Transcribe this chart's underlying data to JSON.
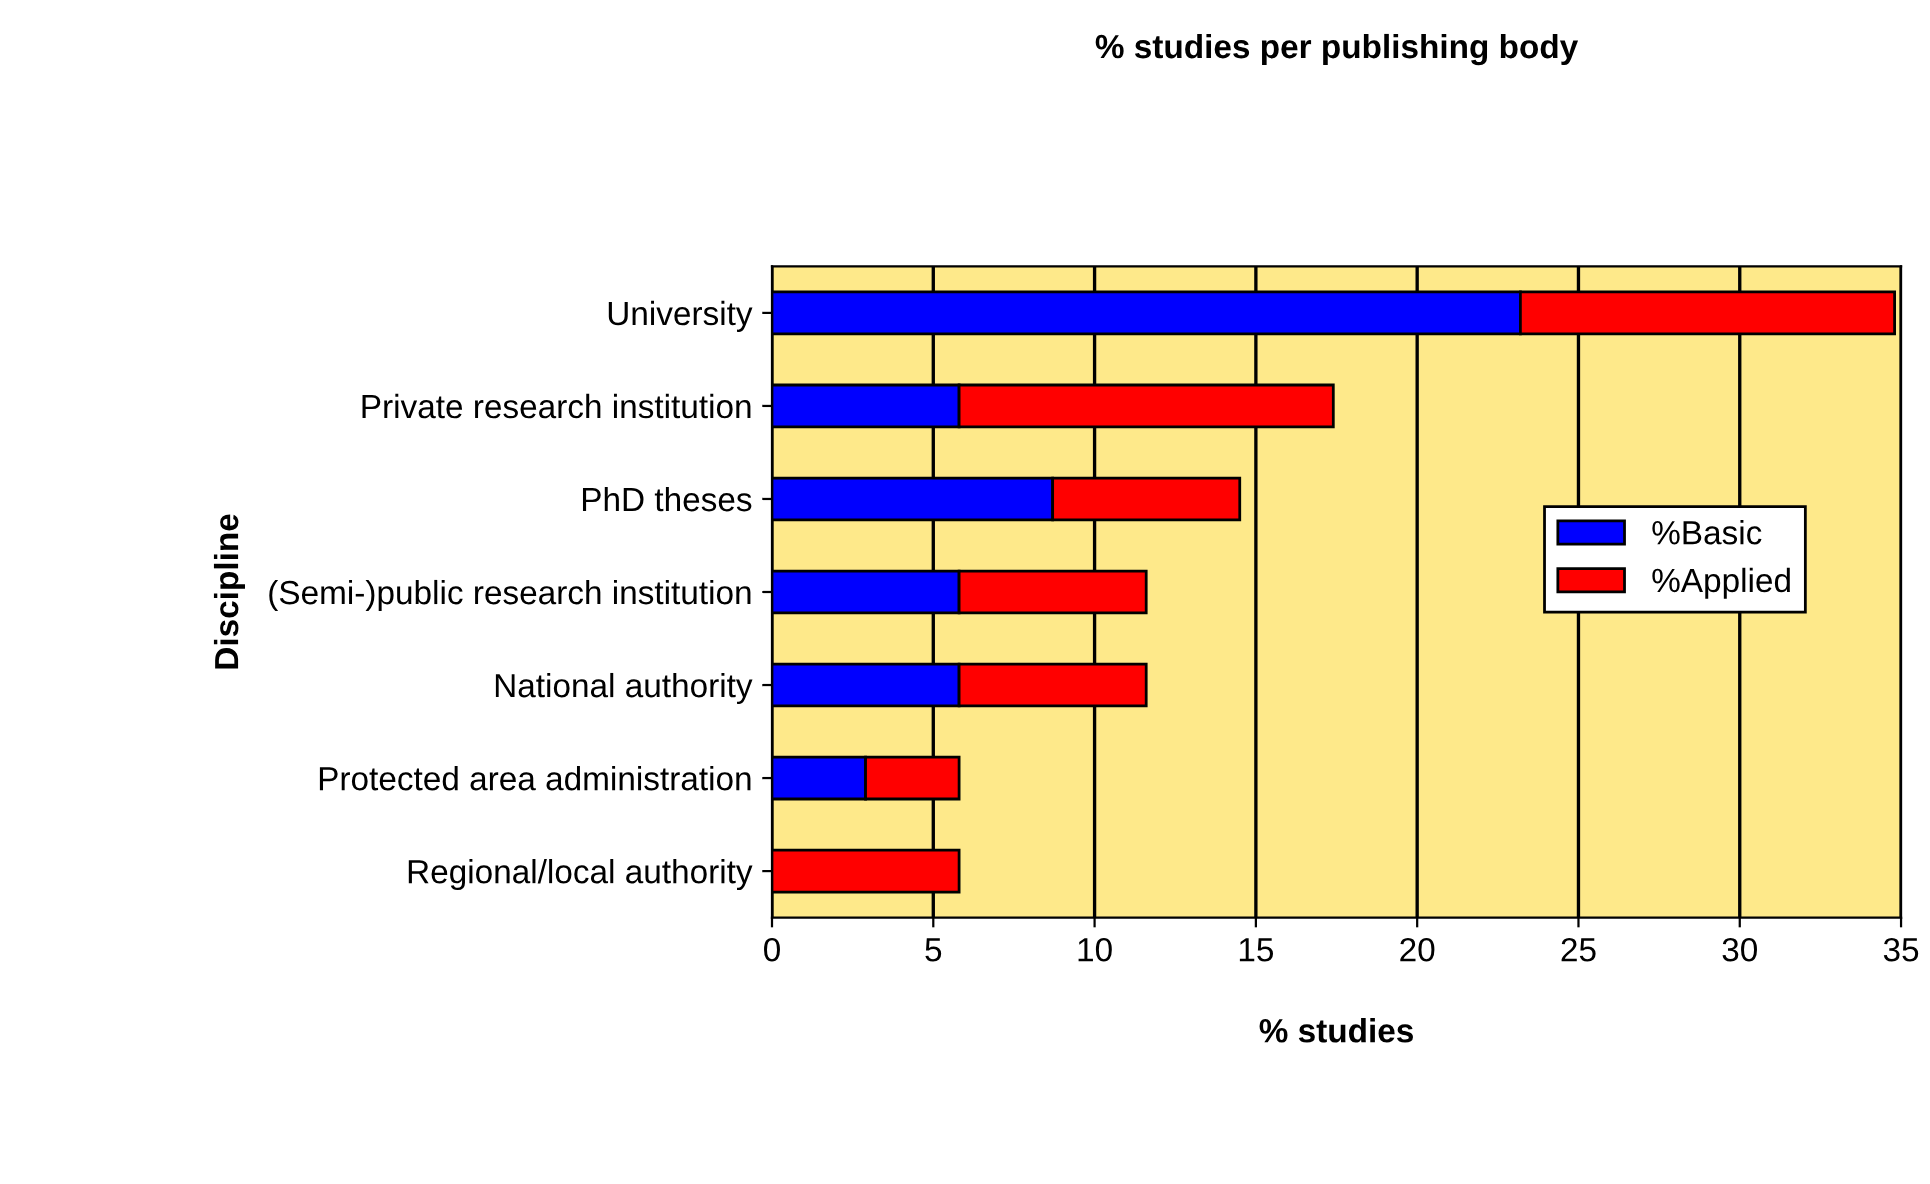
{
  "chart_data": {
    "type": "bar",
    "orientation": "horizontal",
    "stacked": true,
    "title": "% studies per publishing body",
    "xlabel": "% studies",
    "ylabel": "Discipline",
    "categories": [
      "University",
      "Private research institution",
      "PhD theses",
      "(Semi-)public research institution",
      "National authority",
      "Protected area administration",
      "Regional/local authority"
    ],
    "series": [
      {
        "name": "%Basic",
        "color": "#0000ff",
        "values": [
          23.2,
          5.8,
          8.7,
          5.8,
          5.8,
          2.9,
          0
        ]
      },
      {
        "name": "%Applied",
        "color": "#ff0000",
        "values": [
          11.6,
          11.6,
          5.8,
          5.8,
          5.8,
          2.9,
          5.8
        ]
      }
    ],
    "xlim": [
      0,
      35
    ],
    "xticks": [
      0,
      5,
      10,
      15,
      20,
      25,
      30,
      35
    ],
    "grid": "x",
    "legend": "right"
  }
}
